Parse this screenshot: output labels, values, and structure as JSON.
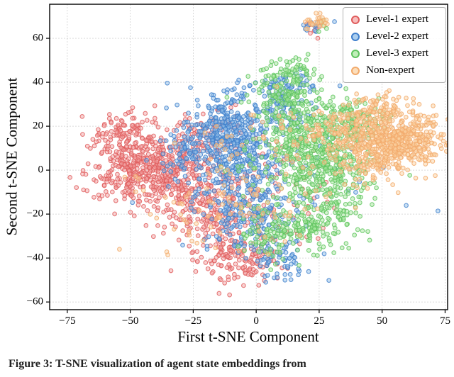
{
  "figure": {
    "caption": "Figure 3: T-SNE visualization of agent state embeddings from",
    "background": "#ffffff"
  },
  "chart_data": {
    "type": "scatter",
    "title": "",
    "xlabel": "First t-SNE Component",
    "ylabel": "Second t-SNE Component",
    "xlim": [
      -82,
      76
    ],
    "ylim": [
      -63.5,
      75.5
    ],
    "xticks": [
      -75,
      -50,
      -25,
      0,
      25,
      50,
      75
    ],
    "yticks": [
      -60,
      -40,
      -20,
      0,
      20,
      40,
      60
    ],
    "grid": true,
    "legend_position": "upper right",
    "marker": {
      "radius": 2.8,
      "fill_alpha": 0.5,
      "edge_alpha": 0.8,
      "edge_width": 1.1
    },
    "series": [
      {
        "name": "Level-1 expert",
        "fill": "#f4a8a8",
        "edge": "#e05c5c",
        "clusters": [
          [
            -48,
            2,
            9,
            9,
            380
          ],
          [
            -30,
            -5,
            9,
            11,
            260
          ],
          [
            -15,
            -20,
            9,
            10,
            160
          ],
          [
            -8,
            -40,
            9,
            6,
            140
          ],
          [
            -20,
            15,
            8,
            7,
            90
          ],
          [
            5,
            -10,
            12,
            15,
            90
          ],
          [
            -55,
            18,
            6,
            5,
            60
          ],
          [
            23,
            66,
            2,
            2,
            12
          ]
        ]
      },
      {
        "name": "Level-2 expert",
        "fill": "#8fbde8",
        "edge": "#3f7fcc",
        "clusters": [
          [
            -12,
            18,
            7,
            9,
            260
          ],
          [
            -6,
            2,
            8,
            10,
            220
          ],
          [
            -2,
            -22,
            8,
            9,
            160
          ],
          [
            8,
            28,
            7,
            6,
            100
          ],
          [
            12,
            40,
            5,
            3,
            40
          ],
          [
            -28,
            8,
            5,
            7,
            90
          ],
          [
            10,
            -40,
            7,
            5,
            60
          ],
          [
            5,
            0,
            20,
            18,
            110
          ],
          [
            23,
            66,
            2.5,
            2,
            16
          ]
        ]
      },
      {
        "name": "Level-3 expert",
        "fill": "#a9e8a0",
        "edge": "#5fc45f",
        "clusters": [
          [
            20,
            12,
            9,
            10,
            320
          ],
          [
            30,
            -5,
            8,
            9,
            200
          ],
          [
            12,
            35,
            7,
            6,
            130
          ],
          [
            38,
            22,
            7,
            6,
            130
          ],
          [
            8,
            -28,
            8,
            7,
            120
          ],
          [
            25,
            -25,
            7,
            6,
            90
          ],
          [
            15,
            45,
            4,
            3,
            35
          ],
          [
            18,
            2,
            16,
            16,
            90
          ],
          [
            25,
            65,
            2,
            2,
            6
          ]
        ]
      },
      {
        "name": "Non-expert",
        "fill": "#fbd3a4",
        "edge": "#f2aa6b",
        "clusters": [
          [
            57,
            14,
            8,
            6,
            420
          ],
          [
            46,
            8,
            7,
            7,
            180
          ],
          [
            34,
            18,
            8,
            6,
            110
          ],
          [
            48,
            28,
            6,
            4,
            80
          ],
          [
            10,
            5,
            20,
            15,
            90
          ],
          [
            -15,
            -15,
            18,
            12,
            70
          ],
          [
            24,
            67,
            2.5,
            2.2,
            28
          ]
        ]
      }
    ]
  }
}
